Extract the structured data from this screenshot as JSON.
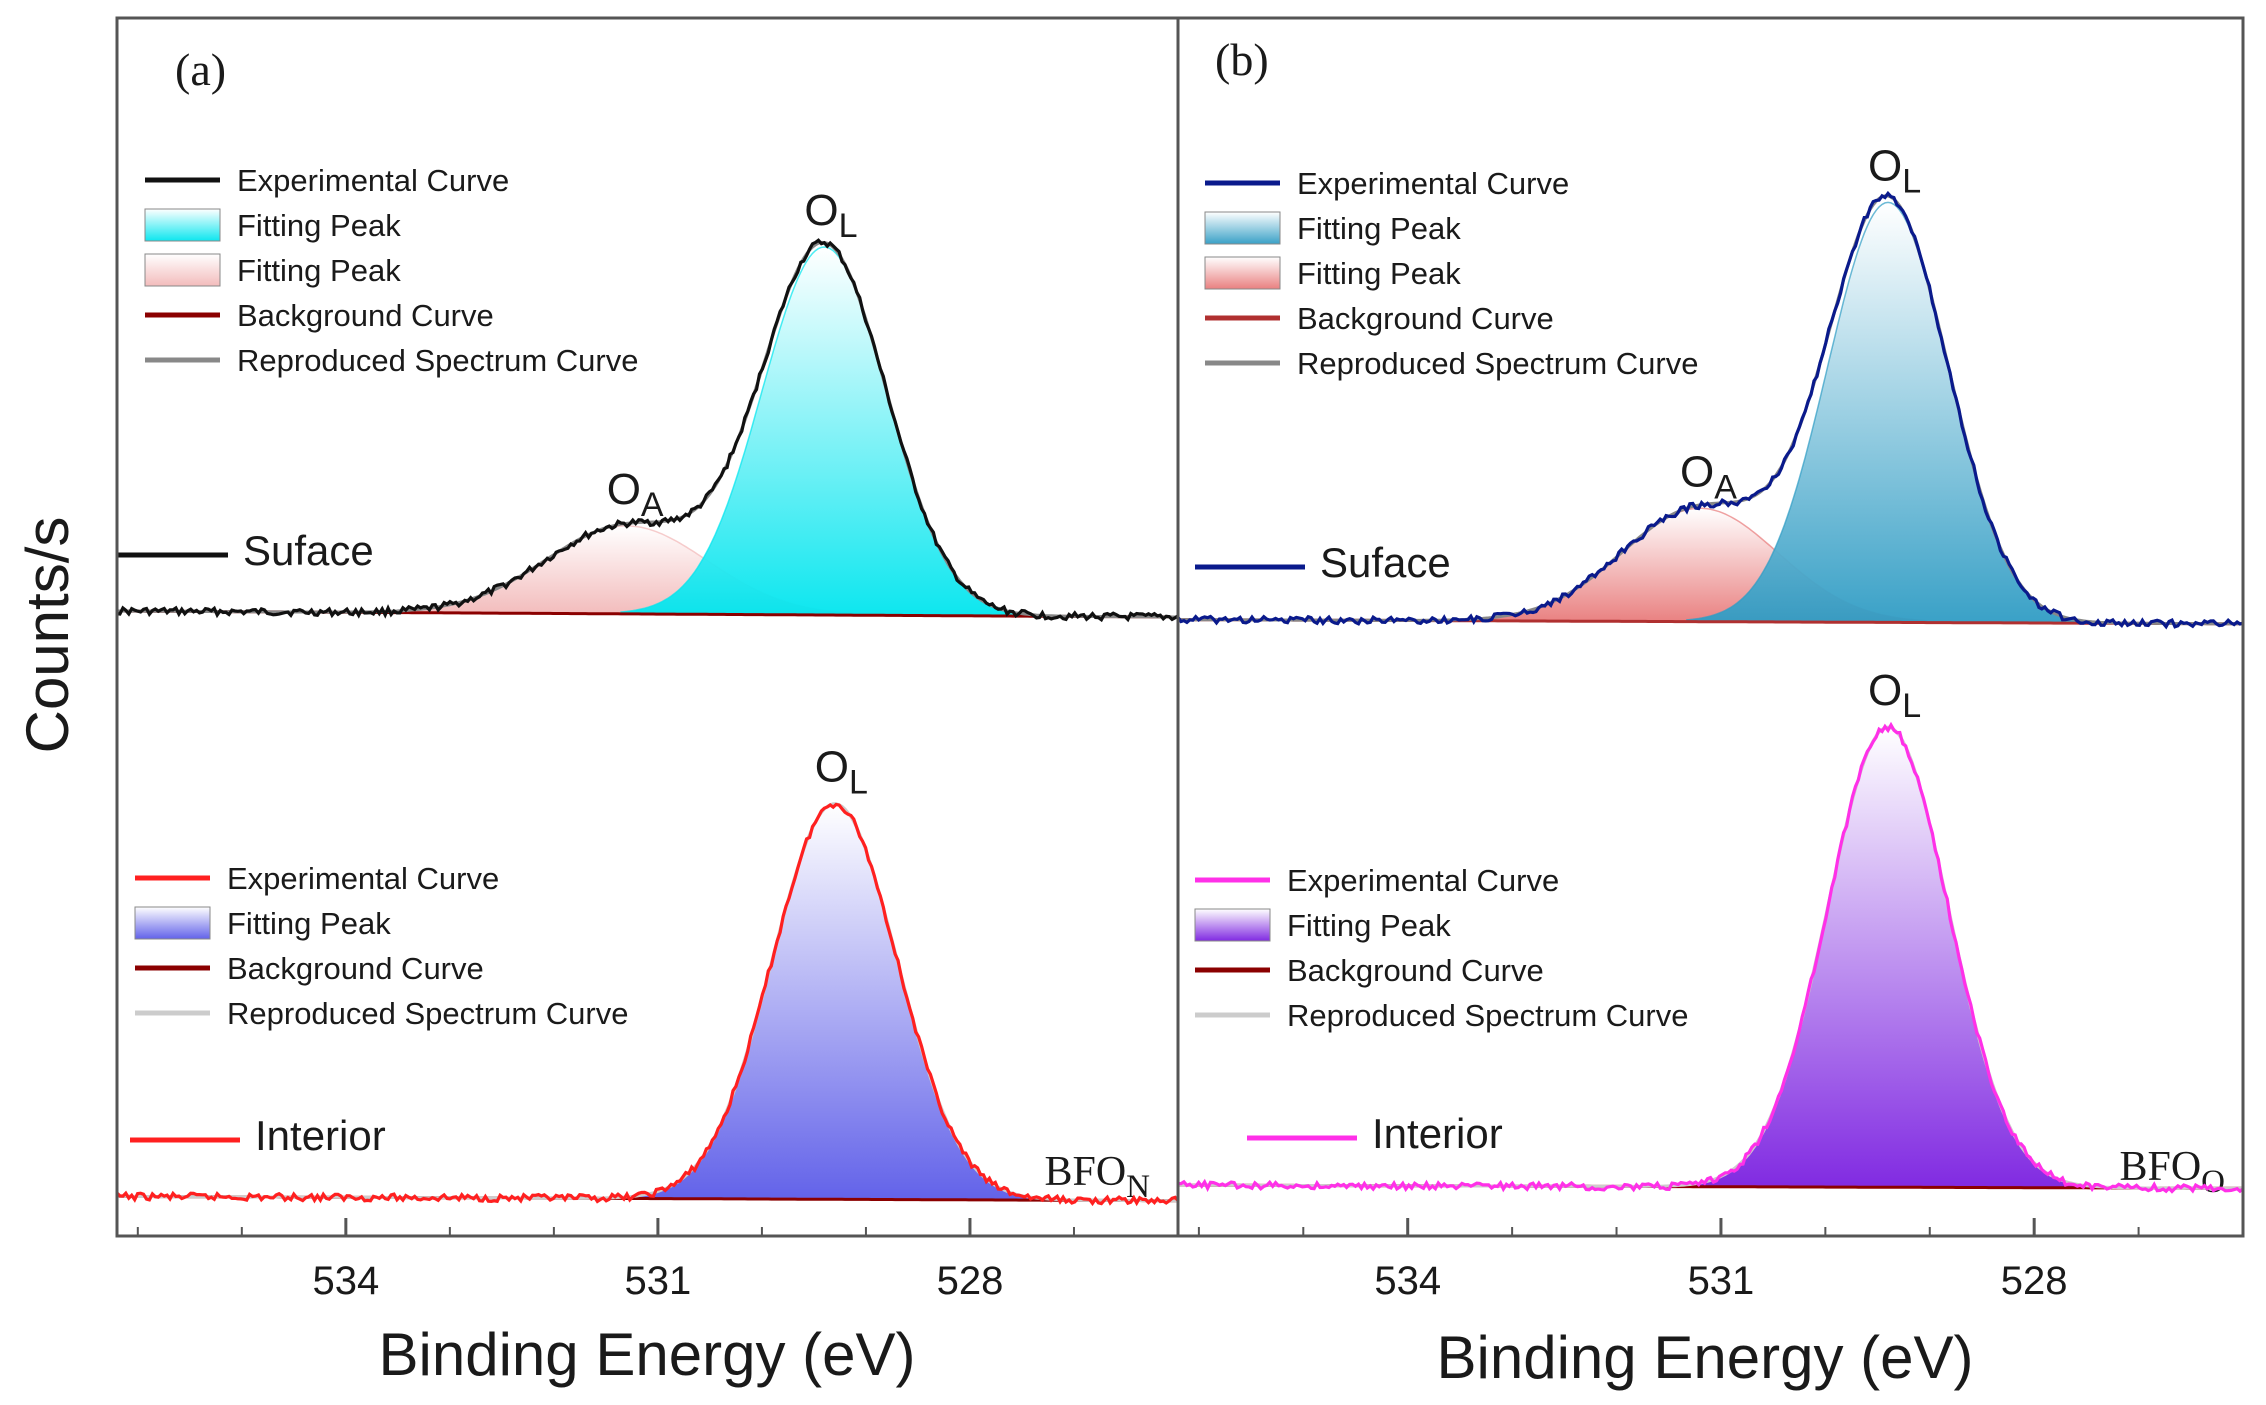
{
  "figure": {
    "ylabel": "Counts/s",
    "xlabel": "Binding Energy (eV)"
  },
  "chart_data": [
    {
      "type": "line",
      "panel": "(a)",
      "xlabel": "Binding Energy (eV)",
      "ylabel": "Counts/s",
      "x_reversed": true,
      "xlim": [
        536.2,
        526.0
      ],
      "xticks": [
        534,
        531,
        528
      ],
      "xtick_labels": [
        "534",
        "531",
        "528"
      ],
      "sample_label": {
        "base": "BFO",
        "sub": "N"
      },
      "subplots": [
        {
          "name": "Suface",
          "colors": {
            "experimental": "#111111",
            "peak_L": "#00e5ee",
            "peak_A": "#f2b8b8",
            "background": "#8b0000",
            "reproduced": "#888888"
          },
          "legend": [
            "Experimental Curve",
            "Fitting Peak",
            "Fitting Peak",
            "Background Curve",
            "Reproduced Spectrum Curve"
          ],
          "background": {
            "left": 0.035,
            "right": 0.02
          },
          "peaks": [
            {
              "label_main": "O",
              "label_sub": "A",
              "center": 531.3,
              "height": 0.22,
              "sigma": 0.78
            },
            {
              "label_main": "O",
              "label_sub": "L",
              "center": 529.4,
              "height": 0.92,
              "sigma": 0.6
            }
          ]
        },
        {
          "name": "Interior",
          "colors": {
            "experimental": "#ff2020",
            "peak_L": "#5a5ae8",
            "background": "#8b0000",
            "reproduced": "#cccccc"
          },
          "legend": [
            "Experimental Curve",
            "Fitting Peak",
            "Background Curve",
            "Reproduced Spectrum Curve"
          ],
          "background": {
            "left": 0.02,
            "right": 0.01
          },
          "peaks": [
            {
              "label_main": "O",
              "label_sub": "L",
              "center": 529.3,
              "height": 0.92,
              "sigma": 0.6
            }
          ]
        }
      ]
    },
    {
      "type": "line",
      "panel": "(b)",
      "xlabel": "Binding Energy (eV)",
      "ylabel": "Counts/s",
      "x_reversed": true,
      "xlim": [
        536.2,
        526.0
      ],
      "xticks": [
        534,
        531,
        528
      ],
      "xtick_labels": [
        "534",
        "531",
        "528"
      ],
      "sample_label": {
        "base": "BFO",
        "sub": "O"
      },
      "subplots": [
        {
          "name": "Suface",
          "colors": {
            "experimental": "#0a1a8c",
            "peak_L": "#2f9cc4",
            "peak_A": "#e87a7a",
            "background": "#b03030",
            "reproduced": "#888888"
          },
          "legend": [
            "Experimental Curve",
            "Fitting Peak",
            "Fitting Peak",
            "Background Curve",
            "Reproduced Spectrum Curve"
          ],
          "background": {
            "left": 0.02,
            "right": 0.01
          },
          "peaks": [
            {
              "label_main": "O",
              "label_sub": "A",
              "center": 531.2,
              "height": 0.27,
              "sigma": 0.75
            },
            {
              "label_main": "O",
              "label_sub": "L",
              "center": 529.4,
              "height": 1.0,
              "sigma": 0.58
            }
          ]
        },
        {
          "name": "Interior",
          "colors": {
            "experimental": "#ff30e8",
            "peak_L": "#7a1fe0",
            "background": "#8b0000",
            "reproduced": "#cccccc"
          },
          "legend": [
            "Experimental Curve",
            "Fitting Peak",
            "Background Curve",
            "Reproduced Spectrum Curve"
          ],
          "background": {
            "left": 0.015,
            "right": 0.008
          },
          "peaks": [
            {
              "label_main": "O",
              "label_sub": "L",
              "center": 529.4,
              "height": 1.0,
              "sigma": 0.58
            }
          ]
        }
      ]
    }
  ]
}
